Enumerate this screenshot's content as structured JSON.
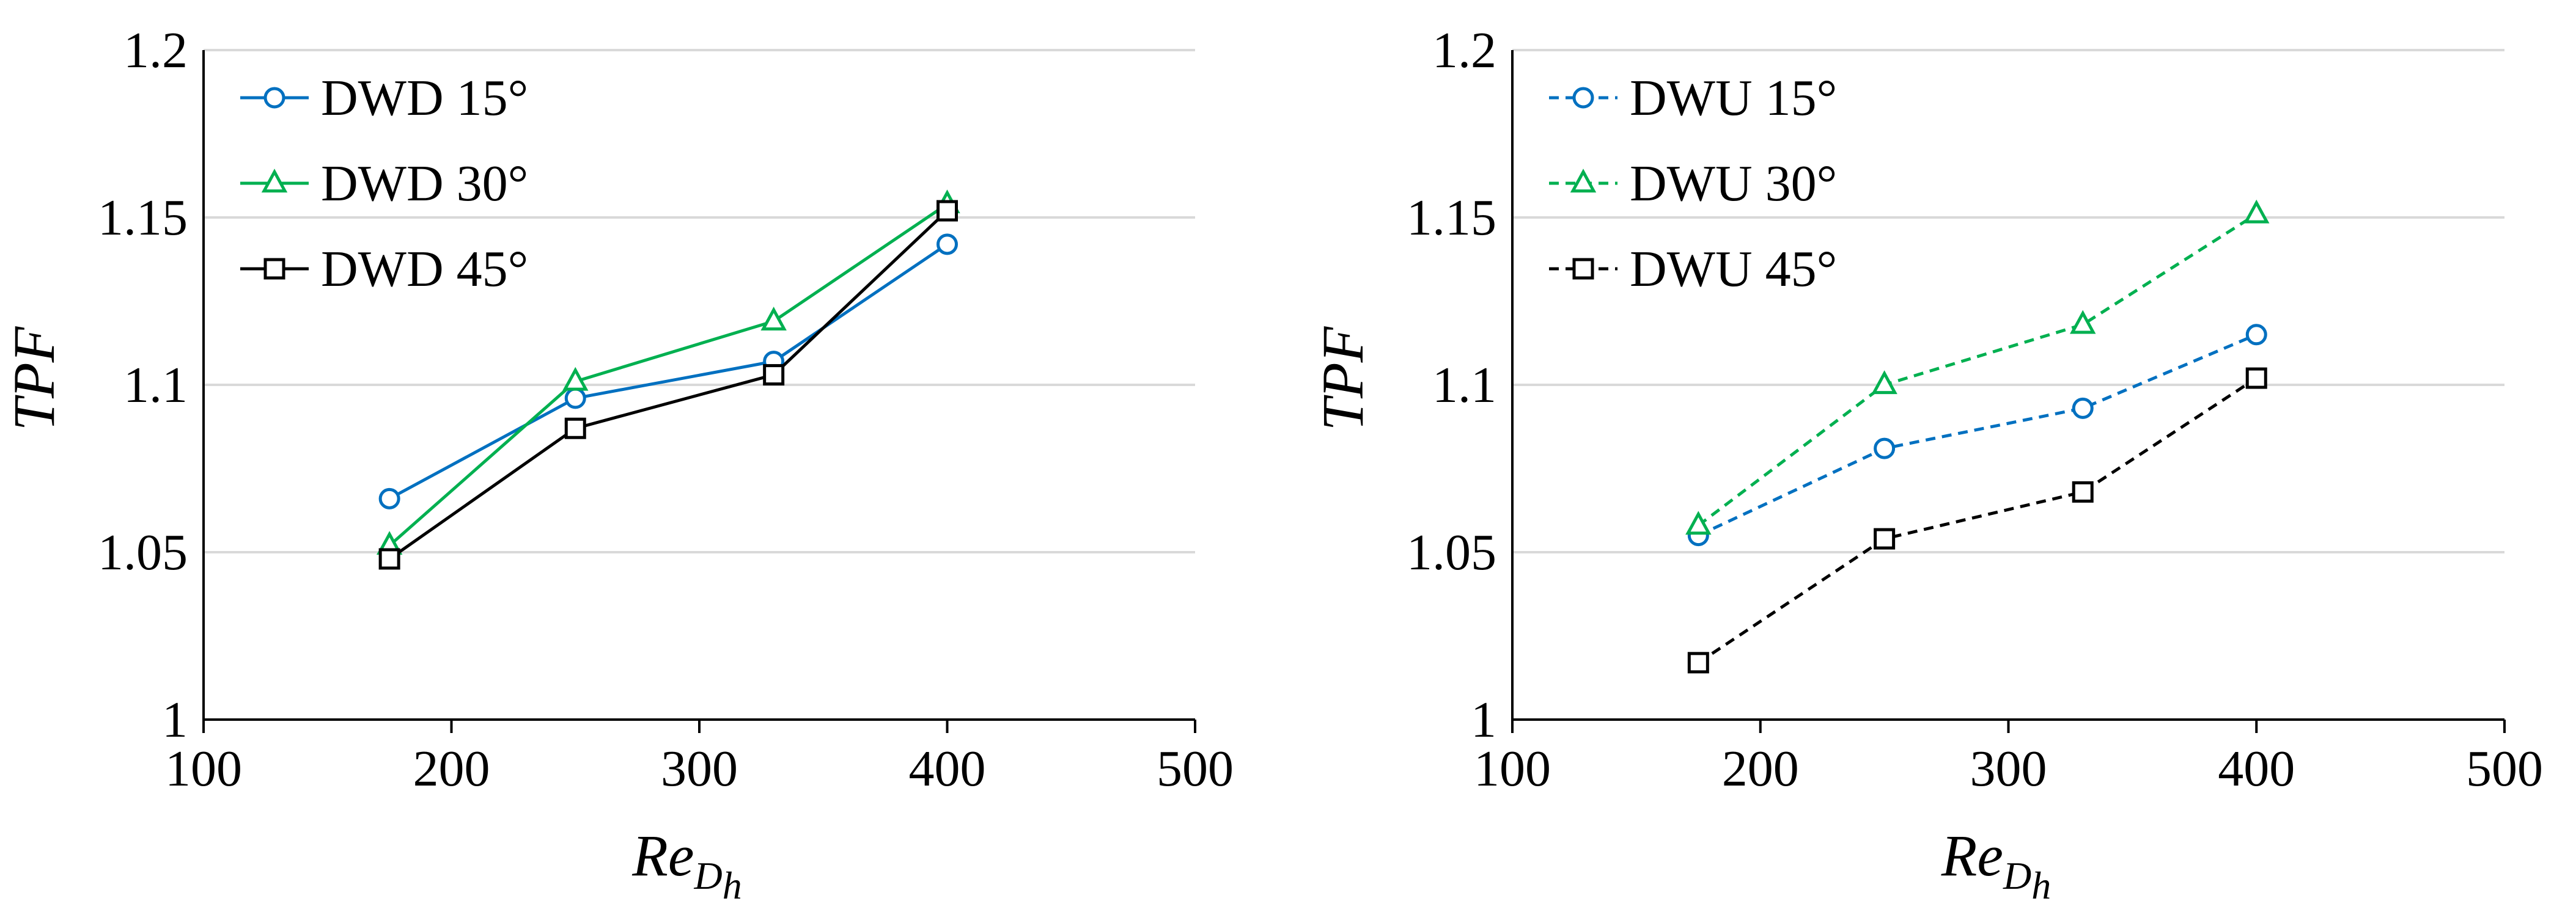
{
  "chart_data": [
    {
      "type": "line",
      "xlim": [
        100,
        500
      ],
      "ylim": [
        1,
        1.2
      ],
      "x_ticks": [
        "100",
        "200",
        "300",
        "400",
        "500"
      ],
      "y_ticks": [
        "1",
        "1.05",
        "1.1",
        "1.15",
        "1.2"
      ],
      "ylabel": "TPF",
      "xlabel": {
        "main": "Re",
        "sub1": "D",
        "sub2": "h"
      },
      "grid": "horizontal",
      "legend_position": "top-left",
      "series": [
        {
          "name": "DWD 15°",
          "color": "#0070C0",
          "marker": "circle",
          "dash": "solid",
          "x": [
            175,
            250,
            330,
            400
          ],
          "y": [
            1.066,
            1.096,
            1.107,
            1.142
          ]
        },
        {
          "name": "DWD 30°",
          "color": "#00B050",
          "marker": "triangle",
          "dash": "solid",
          "x": [
            175,
            250,
            330,
            400
          ],
          "y": [
            1.052,
            1.101,
            1.119,
            1.154
          ]
        },
        {
          "name": "DWD 45°",
          "color": "#000000",
          "marker": "square",
          "dash": "solid",
          "x": [
            175,
            250,
            330,
            400
          ],
          "y": [
            1.048,
            1.087,
            1.103,
            1.152
          ]
        }
      ]
    },
    {
      "type": "line",
      "xlim": [
        100,
        500
      ],
      "ylim": [
        1,
        1.2
      ],
      "x_ticks": [
        "100",
        "200",
        "300",
        "400",
        "500"
      ],
      "y_ticks": [
        "1",
        "1.05",
        "1.1",
        "1.15",
        "1.2"
      ],
      "ylabel": "TPF",
      "xlabel": {
        "main": "Re",
        "sub1": "D",
        "sub2": "h"
      },
      "grid": "horizontal",
      "legend_position": "top-left",
      "series": [
        {
          "name": "DWU 15°",
          "color": "#0070C0",
          "marker": "circle",
          "dash": "dashed",
          "x": [
            175,
            250,
            330,
            400
          ],
          "y": [
            1.055,
            1.081,
            1.093,
            1.115
          ]
        },
        {
          "name": "DWU 30°",
          "color": "#00B050",
          "marker": "triangle",
          "dash": "dashed",
          "x": [
            175,
            250,
            330,
            400
          ],
          "y": [
            1.058,
            1.1,
            1.118,
            1.151
          ]
        },
        {
          "name": "DWU 45°",
          "color": "#000000",
          "marker": "square",
          "dash": "dashed",
          "x": [
            175,
            250,
            330,
            400
          ],
          "y": [
            1.017,
            1.054,
            1.068,
            1.102
          ]
        }
      ]
    }
  ]
}
